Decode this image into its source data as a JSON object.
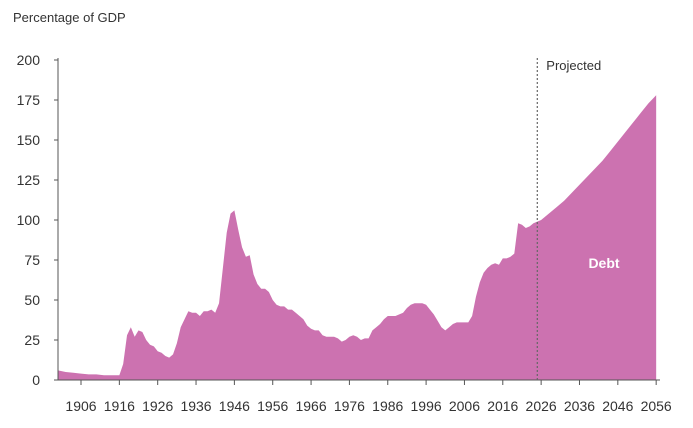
{
  "chart_data": {
    "type": "area",
    "ylabel": "Percentage of GDP",
    "ylim": [
      0,
      200
    ],
    "xlim": [
      1900,
      2057
    ],
    "y_ticks": [
      0,
      25,
      50,
      75,
      100,
      125,
      150,
      175,
      200
    ],
    "x_ticks": [
      1906,
      1916,
      1926,
      1936,
      1946,
      1956,
      1966,
      1976,
      1986,
      1996,
      2006,
      2016,
      2026,
      2036,
      2046,
      2056
    ],
    "grid": false,
    "projection_start": 2025,
    "projection_label": "Projected",
    "area_color": "#cc72b0",
    "series": [
      {
        "name": "Debt",
        "x": [
          1900,
          1902,
          1904,
          1906,
          1908,
          1910,
          1912,
          1914,
          1916,
          1917,
          1918,
          1919,
          1920,
          1921,
          1922,
          1923,
          1924,
          1925,
          1926,
          1927,
          1928,
          1929,
          1930,
          1931,
          1932,
          1933,
          1934,
          1935,
          1936,
          1937,
          1938,
          1939,
          1940,
          1941,
          1942,
          1943,
          1944,
          1945,
          1946,
          1947,
          1948,
          1949,
          1950,
          1951,
          1952,
          1953,
          1954,
          1955,
          1956,
          1957,
          1958,
          1959,
          1960,
          1961,
          1962,
          1963,
          1964,
          1965,
          1966,
          1967,
          1968,
          1969,
          1970,
          1971,
          1972,
          1973,
          1974,
          1975,
          1976,
          1977,
          1978,
          1979,
          1980,
          1981,
          1982,
          1983,
          1984,
          1985,
          1986,
          1987,
          1988,
          1989,
          1990,
          1991,
          1992,
          1993,
          1994,
          1995,
          1996,
          1997,
          1998,
          1999,
          2000,
          2001,
          2002,
          2003,
          2004,
          2005,
          2006,
          2007,
          2008,
          2009,
          2010,
          2011,
          2012,
          2013,
          2014,
          2015,
          2016,
          2017,
          2018,
          2019,
          2020,
          2021,
          2022,
          2023,
          2024,
          2025,
          2026,
          2028,
          2030,
          2032,
          2034,
          2036,
          2038,
          2040,
          2042,
          2044,
          2046,
          2048,
          2050,
          2052,
          2054,
          2056
        ],
        "values": [
          6,
          5,
          4.5,
          4,
          3.5,
          3.5,
          3,
          3,
          3,
          10,
          28,
          33,
          27,
          31,
          30,
          25,
          22,
          21,
          18,
          17,
          15,
          14,
          16,
          23,
          33,
          38,
          43,
          42,
          42,
          40,
          43,
          43,
          44,
          42,
          48,
          70,
          92,
          104,
          106,
          94,
          83,
          77,
          78,
          66,
          60,
          57,
          57,
          55,
          50,
          47,
          46,
          46,
          44,
          44,
          42,
          40,
          38,
          34,
          32,
          31,
          31,
          28,
          27,
          27,
          27,
          26,
          24,
          25,
          27,
          28,
          27,
          25,
          26,
          26,
          31,
          33,
          35,
          38,
          40,
          40,
          40,
          41,
          42,
          45,
          47,
          48,
          48,
          48,
          47,
          44,
          41,
          37,
          33,
          31,
          33,
          35,
          36,
          36,
          36,
          36,
          40,
          52,
          61,
          67,
          70,
          72,
          73,
          72,
          76,
          76,
          77,
          79,
          98,
          97,
          95,
          96,
          98,
          99,
          100,
          104,
          108,
          112,
          117,
          122,
          127,
          132,
          137,
          143,
          149,
          155,
          161,
          167,
          173,
          178
        ]
      }
    ]
  }
}
